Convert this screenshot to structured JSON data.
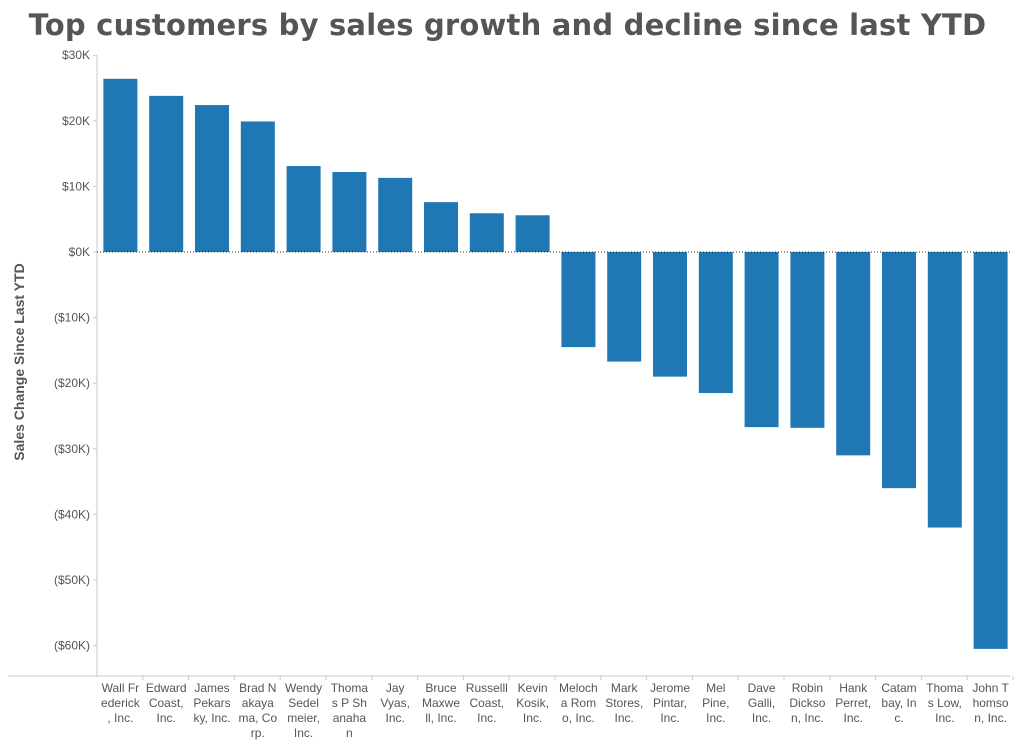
{
  "colors": {
    "bar": "#1f77b4",
    "text": "#555555",
    "axis": "#c8c8c8",
    "zero_line": "#333333"
  },
  "chart_data": {
    "type": "bar",
    "title": "Top customers by sales growth and decline since last YTD",
    "xlabel": "",
    "ylabel": "Sales Change Since Last YTD",
    "ylim": [
      -65000,
      30000
    ],
    "yticks": [
      30000,
      20000,
      10000,
      0,
      -10000,
      -20000,
      -30000,
      -40000,
      -50000,
      -60000
    ],
    "ytick_labels": [
      "$30K",
      "$20K",
      "$10K",
      "$0K",
      "($10K)",
      "($20K)",
      "($30K)",
      "($40K)",
      "($50K)",
      "($60K)"
    ],
    "grid": false,
    "zero_line": "dotted",
    "categories": [
      "Wall Frederick, Inc.",
      "Edward Coast, Inc.",
      "James Pekarsky, Inc.",
      "Brad Nakayama, Corp.",
      "Wendy Sedelmeier, Inc.",
      "Thomas P Shanahan",
      "Jay Vyas, Inc.",
      "Bruce Maxwell, Inc.",
      "Russelll Coast, Inc.",
      "Kevin Kosik, Inc.",
      "Melocha Romo, Inc.",
      "Mark Stores, Inc.",
      "Jerome Pintar, Inc.",
      "Mel Pine, Inc.",
      "Dave Galli, Inc.",
      "Robin Dickson, Inc.",
      "Hank Perret, Inc.",
      "Catambay, Inc.",
      "Thomas Low, Inc.",
      "John Thomson, Inc."
    ],
    "category_label_lines": [
      [
        "Wall Fr",
        "ederick",
        ", Inc."
      ],
      [
        "Edward",
        "Coast,",
        "Inc."
      ],
      [
        "James",
        "Pekars",
        "ky, Inc."
      ],
      [
        "Brad N",
        "akaya",
        "ma, Co",
        "rp."
      ],
      [
        "Wendy",
        "Sedel",
        "meier,",
        "Inc."
      ],
      [
        "Thoma",
        "s P Sh",
        "anaha",
        "n"
      ],
      [
        "Jay",
        "Vyas,",
        "Inc."
      ],
      [
        "Bruce",
        "Maxwe",
        "ll, Inc."
      ],
      [
        "Russelll",
        "Coast,",
        "Inc."
      ],
      [
        "Kevin",
        "Kosik,",
        "Inc."
      ],
      [
        "Meloch",
        "a Rom",
        "o, Inc."
      ],
      [
        "Mark",
        "Stores,",
        "Inc."
      ],
      [
        "Jerome",
        "Pintar,",
        "Inc."
      ],
      [
        "Mel",
        "Pine,",
        "Inc."
      ],
      [
        "Dave",
        "Galli,",
        "Inc."
      ],
      [
        "Robin",
        "Dickso",
        "n, Inc."
      ],
      [
        "Hank",
        "Perret,",
        "Inc."
      ],
      [
        "Catam",
        "bay, In",
        "c."
      ],
      [
        "Thoma",
        "s Low,",
        "Inc."
      ],
      [
        "John T",
        "homso",
        "n, Inc."
      ]
    ],
    "values": [
      26400,
      23800,
      22400,
      19900,
      13100,
      12200,
      11300,
      7600,
      5900,
      5600,
      -14500,
      -16700,
      -19000,
      -21500,
      -26700,
      -26800,
      -31000,
      -36000,
      -42000,
      -60500
    ]
  }
}
